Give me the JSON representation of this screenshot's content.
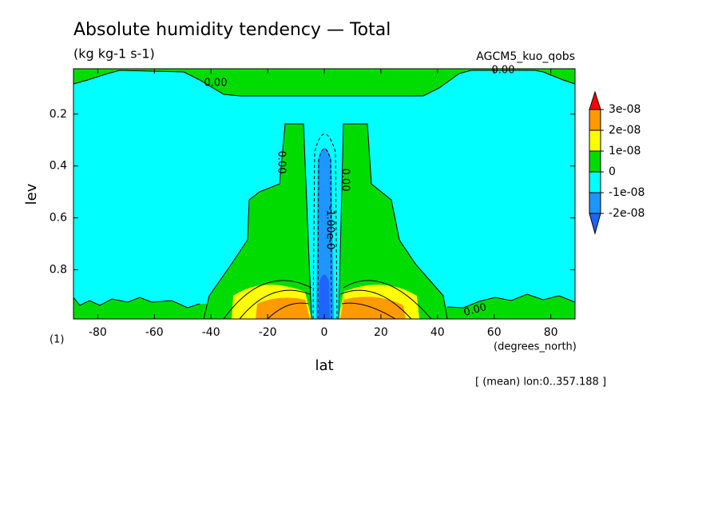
{
  "chart_data": {
    "type": "contour",
    "title": "Absolute humidity tendency — Total",
    "subtitle": "(kg kg-1 s-1)",
    "dataset": "AGCM5_kuo_qobs",
    "xlabel": "lat",
    "xunit": "(degrees_north)",
    "ylabel": "lev",
    "yunit": "(1)",
    "note": "[ (mean) lon:0..357.188 ]",
    "xlim": [
      -88.57,
      88.57
    ],
    "xticks": [
      -80,
      -60,
      -40,
      -20,
      0,
      20,
      40,
      60,
      80
    ],
    "ylim": [
      0.99,
      0.025
    ],
    "yticks": [
      0.2,
      0.4,
      0.6,
      0.8
    ],
    "colorbar": {
      "levels": [
        {
          "value": 3e-08,
          "label": "3e-08"
        },
        {
          "value": 2e-08,
          "label": "2e-08"
        },
        {
          "value": 1e-08,
          "label": "1e-08"
        },
        0,
        {
          "value": -1e-08,
          "label": "-1e-08"
        },
        {
          "value": -2e-08,
          "label": "-2e-08"
        }
      ],
      "colors": [
        "#ff0000",
        "#ff9a00",
        "#ffff00",
        "#00dc00",
        "#00ffff",
        "#1e96ff",
        "#1e64ff"
      ]
    },
    "contour_labels": [
      "0.00",
      "0.00",
      "0.00",
      "0.00",
      "-1.00e-0",
      "0.00"
    ]
  }
}
